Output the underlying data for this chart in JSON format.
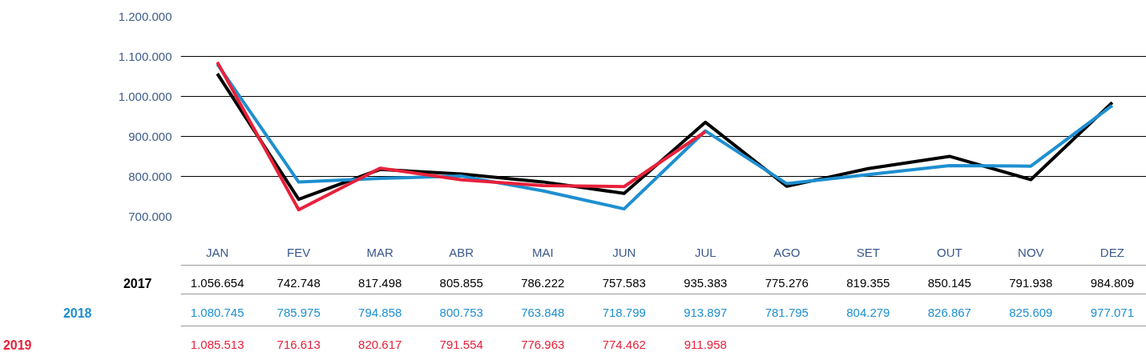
{
  "chart_data": {
    "type": "line",
    "categories": [
      "JAN",
      "FEV",
      "MAR",
      "ABR",
      "MAI",
      "JUN",
      "JUL",
      "AGO",
      "SET",
      "OUT",
      "NOV",
      "DEZ"
    ],
    "series": [
      {
        "name": "2017",
        "color": "#000000",
        "values": [
          1056654,
          742748,
          817498,
          805855,
          786222,
          757583,
          935383,
          775276,
          819355,
          850145,
          791938,
          984809
        ],
        "value_labels": [
          "1.056.654",
          "742.748",
          "817.498",
          "805.855",
          "786.222",
          "757.583",
          "935.383",
          "775.276",
          "819.355",
          "850.145",
          "791.938",
          "984.809"
        ]
      },
      {
        "name": "2018",
        "color": "#1e8fd0",
        "values": [
          1080745,
          785975,
          794858,
          800753,
          763848,
          718799,
          913897,
          781795,
          804279,
          826867,
          825609,
          977071
        ],
        "value_labels": [
          "1.080.745",
          "785.975",
          "794.858",
          "800.753",
          "763.848",
          "718.799",
          "913.897",
          "781.795",
          "804.279",
          "826.867",
          "825.609",
          "977.071"
        ]
      },
      {
        "name": "2019",
        "color": "#e8213b",
        "values": [
          1085513,
          716613,
          820617,
          791554,
          776963,
          774462,
          911958,
          null,
          null,
          null,
          null,
          null
        ],
        "value_labels": [
          "1.085.513",
          "716.613",
          "820.617",
          "791.554",
          "776.963",
          "774.462",
          "911.958",
          null,
          null,
          null,
          null,
          null
        ]
      }
    ],
    "ylim": [
      700000,
      1200000
    ],
    "yticks": [
      {
        "value": 700000,
        "label": "700.000"
      },
      {
        "value": 800000,
        "label": "800.000"
      },
      {
        "value": 900000,
        "label": "900.000"
      },
      {
        "value": 1000000,
        "label": "1.000.000"
      },
      {
        "value": 1100000,
        "label": "1.100.000"
      },
      {
        "value": 1200000,
        "label": "1.200.000"
      }
    ],
    "grid": "y",
    "legend": false,
    "marker": "none",
    "line_style": "solid"
  }
}
